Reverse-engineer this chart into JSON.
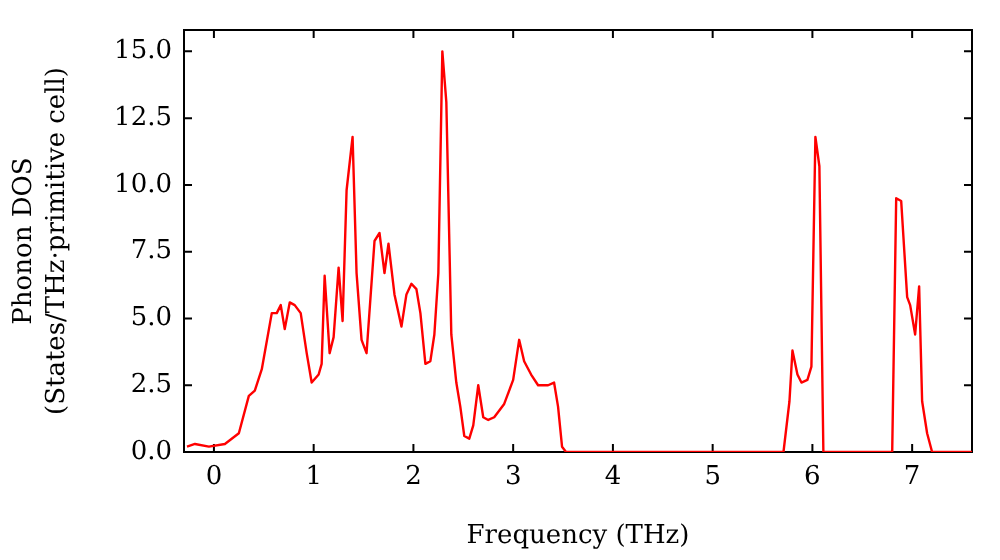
{
  "chart_data": {
    "type": "line",
    "xlabel": "Frequency (THz)",
    "ylabel": "Phonon DOS\n(States/THz·primitive cell)",
    "xlim": [
      -0.3,
      7.6
    ],
    "ylim": [
      0,
      15.8
    ],
    "xticks": [
      0,
      1,
      2,
      3,
      4,
      5,
      6,
      7
    ],
    "yticks": [
      {
        "value": 0,
        "label": "0.0"
      },
      {
        "value": 2.5,
        "label": "2.5"
      },
      {
        "value": 5,
        "label": "5.0"
      },
      {
        "value": 7.5,
        "label": "7.5"
      },
      {
        "value": 10,
        "label": "10.0"
      },
      {
        "value": 12.5,
        "label": "12.5"
      },
      {
        "value": 15,
        "label": "15.0"
      }
    ],
    "grid": false,
    "legend": false,
    "marker": "none",
    "line_style": "solid",
    "series": [
      {
        "color": "#ff0000",
        "x": [
          -0.27,
          -0.19,
          -0.05,
          0.11,
          0.25,
          0.35,
          0.41,
          0.48,
          0.58,
          0.63,
          0.67,
          0.71,
          0.76,
          0.81,
          0.87,
          0.93,
          0.98,
          1.05,
          1.08,
          1.11,
          1.16,
          1.2,
          1.25,
          1.29,
          1.33,
          1.39,
          1.43,
          1.48,
          1.53,
          1.61,
          1.66,
          1.71,
          1.75,
          1.81,
          1.88,
          1.93,
          1.98,
          2.03,
          2.07,
          2.12,
          2.17,
          2.21,
          2.25,
          2.29,
          2.33,
          2.38,
          2.43,
          2.47,
          2.51,
          2.56,
          2.6,
          2.65,
          2.7,
          2.75,
          2.81,
          2.91,
          3.0,
          3.06,
          3.11,
          3.18,
          3.25,
          3.35,
          3.41,
          3.45,
          3.49,
          3.53,
          5.71,
          5.77,
          5.8,
          5.85,
          5.89,
          5.95,
          5.99,
          6.03,
          6.07,
          6.11,
          6.8,
          6.84,
          6.89,
          6.95,
          6.98,
          7.03,
          7.07,
          7.1,
          7.15,
          7.2,
          7.6
        ],
        "values": [
          0.2,
          0.3,
          0.2,
          0.3,
          0.7,
          2.1,
          2.3,
          3.1,
          5.2,
          5.2,
          5.5,
          4.6,
          5.6,
          5.5,
          5.2,
          3.7,
          2.6,
          2.9,
          3.3,
          6.6,
          3.7,
          4.3,
          6.9,
          4.9,
          9.8,
          11.8,
          6.7,
          4.2,
          3.7,
          7.9,
          8.2,
          6.7,
          7.8,
          5.9,
          4.7,
          5.9,
          6.3,
          6.1,
          5.2,
          3.3,
          3.4,
          4.4,
          6.7,
          15.0,
          13.1,
          4.4,
          2.6,
          1.7,
          0.6,
          0.5,
          1.0,
          2.5,
          1.3,
          1.2,
          1.3,
          1.8,
          2.7,
          4.2,
          3.4,
          2.9,
          2.5,
          2.5,
          2.6,
          1.7,
          0.2,
          0,
          0,
          1.9,
          3.8,
          2.9,
          2.6,
          2.7,
          3.2,
          11.8,
          10.7,
          0,
          0,
          9.5,
          9.4,
          5.8,
          5.5,
          4.4,
          6.2,
          1.9,
          0.7,
          0,
          0
        ]
      }
    ]
  }
}
